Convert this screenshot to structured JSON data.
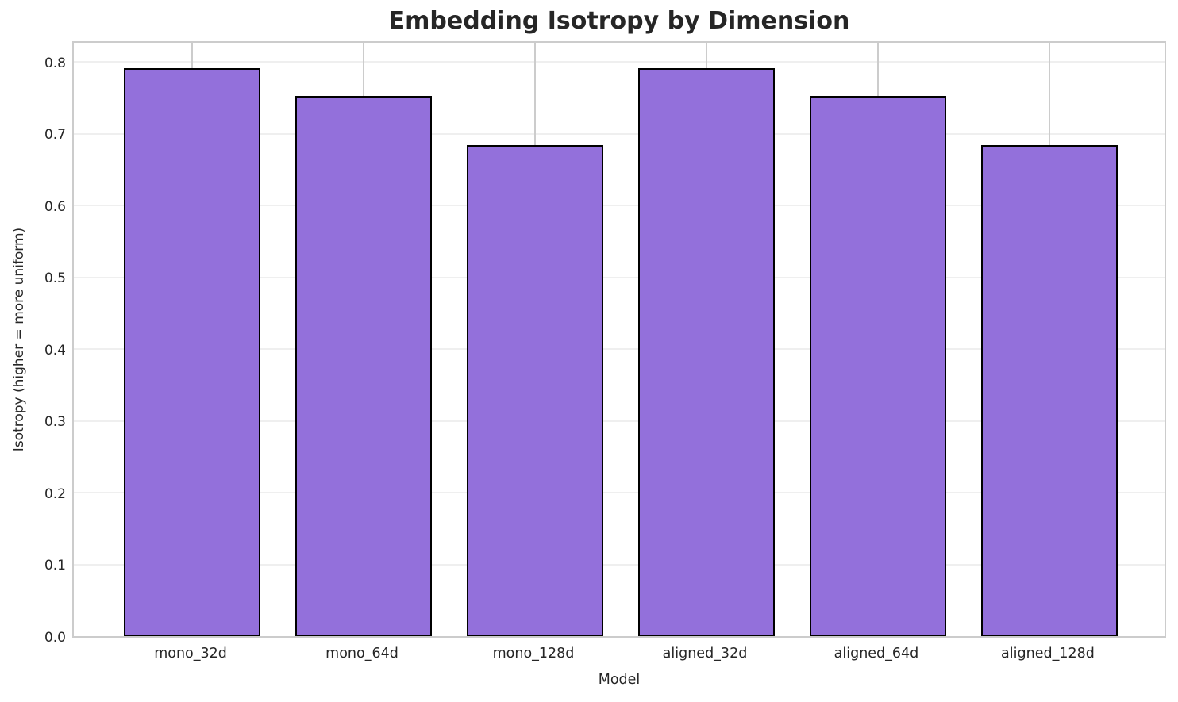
{
  "chart_data": {
    "type": "bar",
    "title": "Embedding Isotropy by Dimension",
    "xlabel": "Model",
    "ylabel": "Isotropy (higher = more uniform)",
    "categories": [
      "mono_32d",
      "mono_64d",
      "mono_128d",
      "aligned_32d",
      "aligned_64d",
      "aligned_128d"
    ],
    "values": [
      0.791,
      0.753,
      0.684,
      0.791,
      0.753,
      0.684
    ],
    "yticks": [
      0.0,
      0.1,
      0.2,
      0.3,
      0.4,
      0.5,
      0.6,
      0.7,
      0.8
    ],
    "ylim": [
      0,
      0.831
    ],
    "bar_width_fraction": 0.8,
    "grid": "both",
    "legend_position": "none",
    "colors": {
      "bar_fill": "#9370DB",
      "bar_edge": "#000000",
      "grid_horizontal": "#efefef",
      "grid_vertical": "#cccccc",
      "spine": "#cccccc",
      "text": "#262626",
      "background": "#ffffff"
    }
  }
}
